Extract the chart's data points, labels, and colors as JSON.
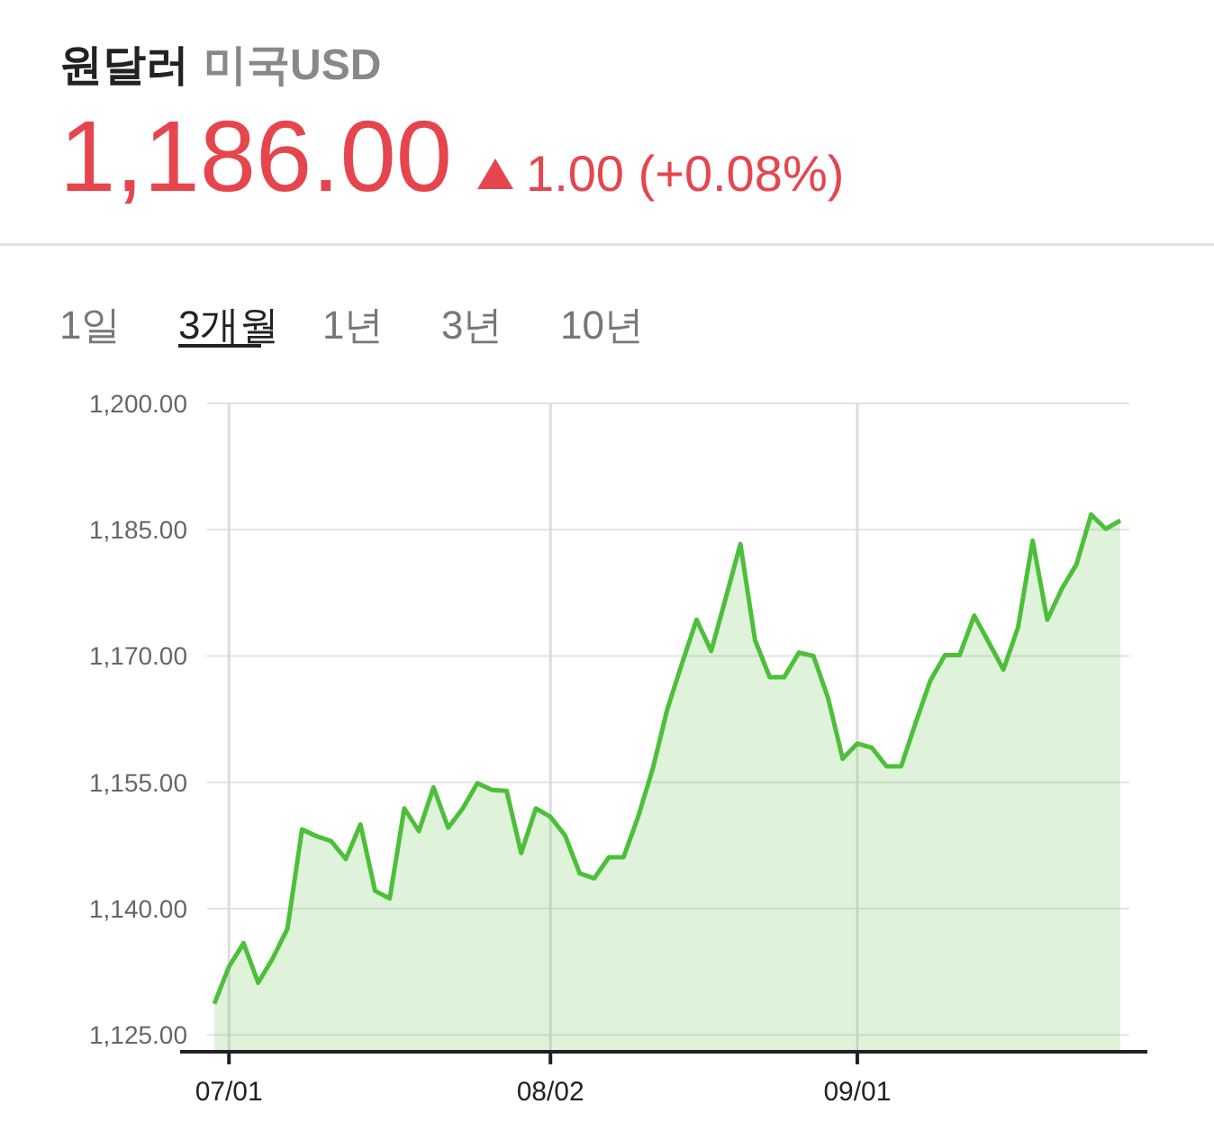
{
  "chart_data": {
    "type": "area",
    "title": "원달러",
    "subtitle": "미국USD",
    "annotations": [
      "1,186.00",
      "1.00 (+0.08%)",
      "1일",
      "3개월",
      "1년",
      "3년",
      "10년"
    ],
    "categories": [
      null,
      "07/01",
      null,
      null,
      null,
      null,
      null,
      null,
      null,
      null,
      null,
      null,
      null,
      null,
      null,
      null,
      null,
      null,
      null,
      null,
      null,
      null,
      null,
      "08/02",
      null,
      null,
      null,
      null,
      null,
      null,
      null,
      null,
      null,
      null,
      null,
      null,
      null,
      null,
      null,
      null,
      null,
      null,
      null,
      null,
      "09/01",
      null,
      null,
      null,
      null,
      null,
      null,
      null,
      null,
      null,
      null,
      null,
      null,
      null,
      null,
      null,
      null,
      null,
      null
    ],
    "series": [
      {
        "color": "#4dbf3a",
        "values": [
          1128.7,
          1133.1,
          1135.9,
          1131.2,
          1134.1,
          1137.6,
          1149.4,
          1148.6,
          1148.0,
          1145.9,
          1150.0,
          1142.1,
          1141.2,
          1151.9,
          1149.2,
          1154.4,
          1149.6,
          1151.9,
          1154.9,
          1154.1,
          1154.0,
          1146.6,
          1151.9,
          1150.9,
          1148.7,
          1144.2,
          1143.6,
          1146.1,
          1146.1,
          1150.9,
          1156.6,
          1163.7,
          1169.1,
          1174.3,
          1170.6,
          1176.9,
          1183.3,
          1171.9,
          1167.5,
          1167.5,
          1170.4,
          1170.0,
          1165.0,
          1157.8,
          1159.6,
          1159.1,
          1156.9,
          1156.9,
          1162.1,
          1167.1,
          1170.1,
          1170.1,
          1174.8,
          1171.6,
          1168.4,
          1173.4,
          1183.7,
          1174.3,
          1178.0,
          1180.9,
          1186.8,
          1185.1,
          1186.1
        ]
      }
    ],
    "ylim": [
      1123,
      1200
    ],
    "yticks": [
      {
        "value": 1125,
        "label": "1,125.00"
      },
      {
        "value": 1140,
        "label": "1,140.00"
      },
      {
        "value": 1155,
        "label": "1,155.00"
      },
      {
        "value": 1170,
        "label": "1,170.00"
      },
      {
        "value": 1185,
        "label": "1,185.00"
      },
      {
        "value": 1200,
        "label": "1,200.00"
      }
    ],
    "grid": true
  }
}
